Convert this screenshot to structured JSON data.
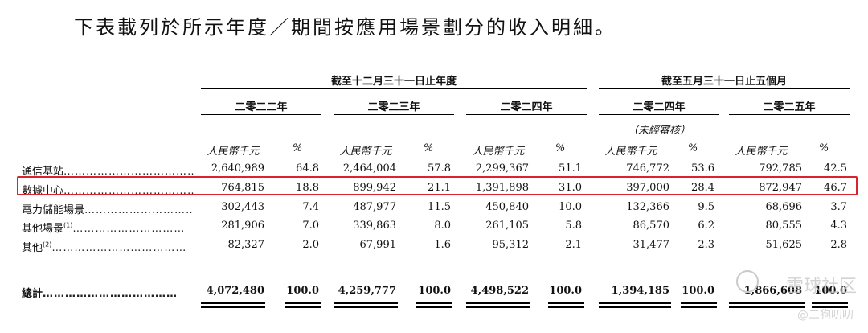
{
  "title": "下表載列於所示年度／期間按應用場景劃分的收入明細。",
  "groups": {
    "annual": "截至十二月三十一日止年度",
    "five_months": "截至五月三十一日止五個月"
  },
  "years": [
    "二零二二年",
    "二零二三年",
    "二零二四年",
    "二零二四年",
    "二零二五年"
  ],
  "unaudited": "（未經審核）",
  "units": {
    "rmb": "人民幣千元",
    "pct": "%"
  },
  "rows": [
    {
      "label": "通信基站",
      "dots": "………………………………",
      "values": [
        "2,640,989",
        "64.8",
        "2,464,004",
        "57.8",
        "2,299,367",
        "51.1",
        "746,772",
        "53.6",
        "792,785",
        "42.5"
      ]
    },
    {
      "label": "數據中心",
      "dots": "………………………………",
      "values": [
        "764,815",
        "18.8",
        "899,942",
        "21.1",
        "1,391,898",
        "31.0",
        "397,000",
        "28.4",
        "872,947",
        "46.7"
      ]
    },
    {
      "label": "電力儲能場景",
      "dots": "…………………………",
      "values": [
        "302,443",
        "7.4",
        "487,977",
        "11.5",
        "450,840",
        "10.0",
        "132,366",
        "9.5",
        "68,696",
        "3.7"
      ]
    },
    {
      "label": "其他場景",
      "sup": "(1)",
      "dots": "…………………………",
      "values": [
        "281,906",
        "7.0",
        "339,863",
        "8.0",
        "261,105",
        "5.8",
        "86,570",
        "6.2",
        "80,555",
        "4.3"
      ]
    },
    {
      "label": "其他",
      "sup": "(2)",
      "dots": "………………………………",
      "values": [
        "82,327",
        "2.0",
        "67,991",
        "1.6",
        "95,312",
        "2.1",
        "31,477",
        "2.3",
        "51,625",
        "2.8"
      ]
    }
  ],
  "total": {
    "label": "總計",
    "dots": "………………………………",
    "values": [
      "4,072,480",
      "100.0",
      "4,259,777",
      "100.0",
      "4,498,522",
      "100.0",
      "1,394,185",
      "100.0",
      "1,866,608",
      "100.0"
    ]
  },
  "watermark": {
    "site": "雪球社区",
    "user": "@二狗叨叨"
  },
  "colors": {
    "highlight": "#d8242c"
  }
}
